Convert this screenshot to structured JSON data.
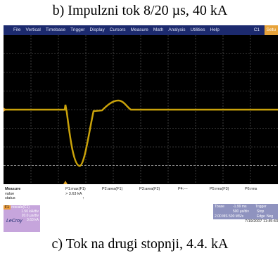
{
  "caption_top": "b) Impulzni tok 8/20 µs, 40 kA",
  "caption_bottom": "c) Tok na drugi stopnji, 4.4. kA",
  "menu": [
    "File",
    "Vertical",
    "Timebase",
    "Trigger",
    "Display",
    "Cursors",
    "Measure",
    "Math",
    "Analysis",
    "Utilities",
    "Help"
  ],
  "channel": "C1",
  "setup": "Setu",
  "measure": {
    "title": "Measure",
    "rows": [
      "value",
      "status"
    ],
    "params": [
      "P1:max(F1)",
      "P2:area(F1)",
      "P3:area(F2)",
      "P4:---",
      "P5:rms(F3)",
      "P6:rms"
    ],
    "value": "> 3.63 kA",
    "status": "↑"
  },
  "f1": {
    "header": "F1",
    "name": "rescale(C1)",
    "lines": [
      "1.50 kA/div",
      "20.0 µs/div"
    ],
    "reading": "3.63 kA"
  },
  "timebase": {
    "title": "Tbase",
    "delay": "-1.99 ms",
    "div": "500 µs/div",
    "rate": "2.00 MS  500 MS/s",
    "trigger": "Trigger",
    "mode": "Stop",
    "type": "Edge",
    "slope": "Neg"
  },
  "brand": "LeCroy",
  "timestamp": "7/19/2007 11:45:43"
}
